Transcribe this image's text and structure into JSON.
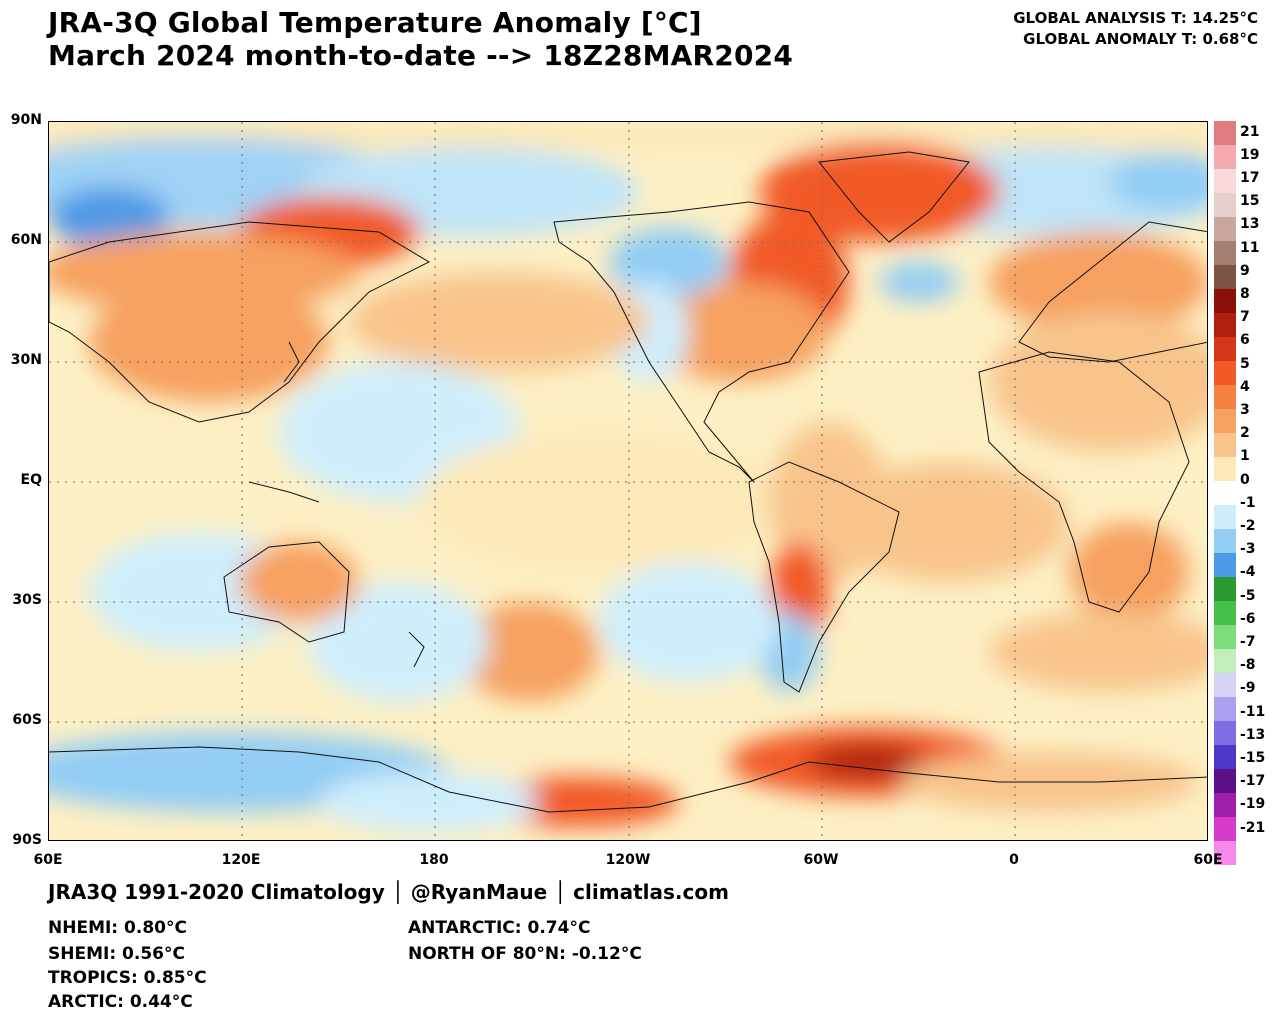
{
  "header": {
    "title_line1": "JRA-3Q Global Temperature Anomaly [°C]",
    "title_line2": "March 2024 month-to-date --> 18Z28MAR2024",
    "global_analysis": "GLOBAL ANALYSIS T: 14.25°C",
    "global_anomaly": "GLOBAL ANOMALY T: 0.68°C"
  },
  "map": {
    "lat_labels": [
      "90N",
      "60N",
      "30N",
      "EQ",
      "30S",
      "60S",
      "90S"
    ],
    "lon_labels": [
      "60E",
      "120E",
      "180",
      "120W",
      "60W",
      "0",
      "60E"
    ]
  },
  "colorbar": {
    "labels": [
      "21",
      "19",
      "17",
      "15",
      "13",
      "11",
      "9",
      "8",
      "7",
      "6",
      "5",
      "4",
      "3",
      "2",
      "1",
      "0",
      "-1",
      "-2",
      "-3",
      "-4",
      "-5",
      "-6",
      "-7",
      "-8",
      "-9",
      "-11",
      "-13",
      "-15",
      "-17",
      "-19",
      "-21"
    ],
    "colors": [
      "#e07b80",
      "#f2aab0",
      "#f9d9dc",
      "#e6cfcb",
      "#c9a79f",
      "#a57e72",
      "#7d5344",
      "#8a1108",
      "#b0200c",
      "#d5361a",
      "#f15a27",
      "#f5803f",
      "#f6a160",
      "#f8c48c",
      "#fde9b8",
      "#ffffff",
      "#cfeefc",
      "#93cdf4",
      "#4f9ae6",
      "#2a9a2f",
      "#47c04b",
      "#7fdc7b",
      "#c2eeba",
      "#d6d2f6",
      "#a9a1ee",
      "#7c6fe1",
      "#4a38c9",
      "#5c0f86",
      "#a01fa8",
      "#d63bc7",
      "#f58ae8"
    ]
  },
  "footer": {
    "source_line": "JRA3Q 1991-2020 Climatology │ @RyanMaue │ climatlas.com",
    "regions": {
      "nhemi": "NHEMI: 0.80°C",
      "shemi": "SHEMI: 0.56°C",
      "tropics": "TROPICS: 0.85°C",
      "arctic": "ARCTIC: 0.44°C",
      "antarctic": "ANTARCTIC: 0.74°C",
      "north80": "NORTH OF 80°N: -0.12°C"
    }
  }
}
